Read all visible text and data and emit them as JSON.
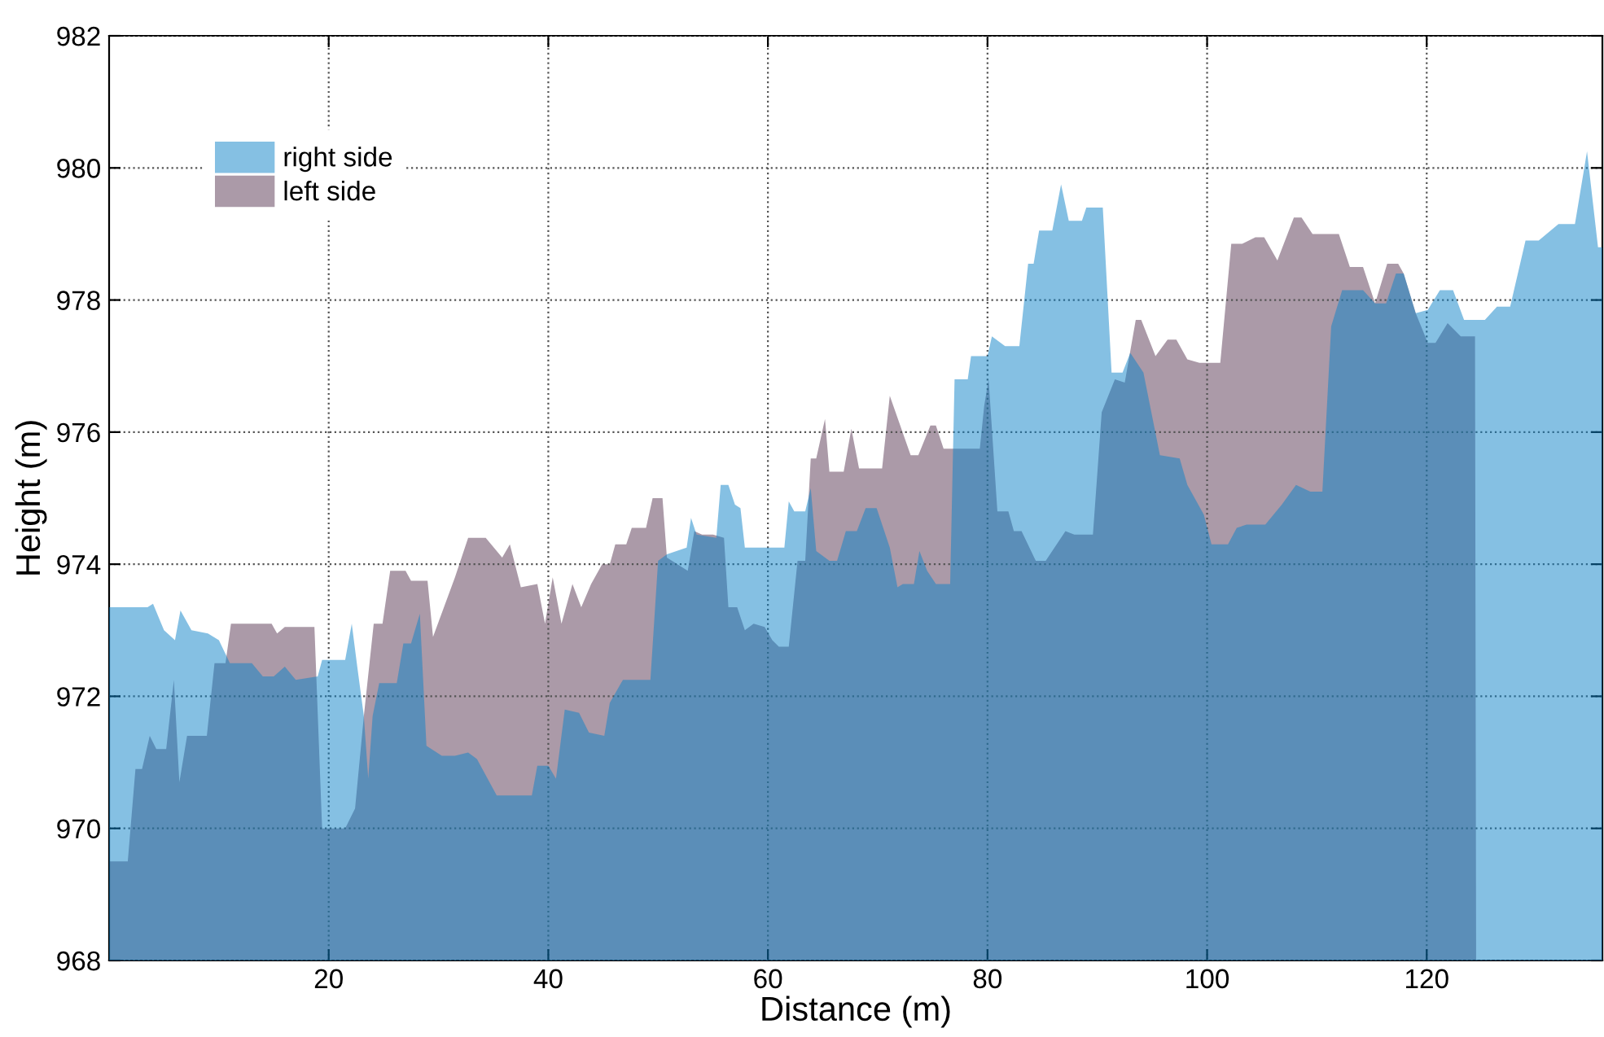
{
  "chart_data": {
    "type": "area",
    "xlabel": "Distance (m)",
    "ylabel": "Height (m)",
    "xlim": [
      0,
      136
    ],
    "ylim": [
      968,
      982
    ],
    "xticks": [
      20,
      40,
      60,
      80,
      100,
      120
    ],
    "yticks": [
      968,
      970,
      972,
      974,
      976,
      978,
      980,
      982
    ],
    "grid": true,
    "legend": "top left",
    "series": [
      {
        "name": "right side",
        "color": "#85c0e3",
        "x": [
          0,
          3.5,
          4,
          5,
          6,
          6.5,
          7.5,
          9,
          10,
          11,
          13,
          14,
          15,
          16,
          17,
          19,
          19.4,
          21.5,
          22.1,
          22.6,
          23.2,
          23.6,
          24,
          24.6,
          26.2,
          26.8,
          27.5,
          28.3,
          28.9,
          30.3,
          31.5,
          32.7,
          33.5,
          35.3,
          38.5,
          39,
          40,
          40.7,
          41.5,
          42.8,
          43.7,
          45.1,
          45.6,
          46.8,
          49.3,
          50,
          50.8,
          52.6,
          53,
          53.5,
          55.3,
          55.7,
          56.4,
          57,
          57.5,
          57.9,
          60,
          61.5,
          61.9,
          62.4,
          63.4,
          63.9,
          64.4,
          65.6,
          66.3,
          67.1,
          68.1,
          68.9,
          69.9,
          71.1,
          71.8,
          72.3,
          73.3,
          73.8,
          74.5,
          75.3,
          76.6,
          77,
          78.2,
          78.5,
          80,
          80.4,
          81.6,
          82.9,
          83.7,
          84.2,
          84.7,
          85.9,
          86.7,
          87.4,
          88.6,
          89,
          90.5,
          91.3,
          92.3,
          93,
          94.2,
          95.7,
          97.5,
          98.2,
          99.7,
          100.4,
          101.9,
          102.7,
          103.6,
          105.3,
          106.8,
          108.1,
          109.4,
          110.5,
          111.3,
          112.3,
          114.2,
          115.3,
          116.3,
          117.2,
          117.9,
          119,
          120.1,
          121.2,
          122.4,
          123.4,
          125.3,
          126.4,
          127.6,
          129,
          130.2,
          132,
          133.5,
          134.6,
          135.6,
          136
        ],
        "values": [
          973.35,
          973.35,
          973.4,
          973.0,
          972.85,
          973.3,
          973.0,
          972.95,
          972.85,
          972.5,
          972.5,
          972.3,
          972.3,
          972.45,
          972.25,
          972.3,
          972.55,
          972.55,
          973.1,
          972.45,
          971.7,
          970.75,
          971.7,
          972.2,
          972.2,
          972.8,
          972.8,
          973.25,
          971.25,
          971.1,
          971.1,
          971.15,
          971.05,
          970.5,
          970.5,
          970.95,
          970.95,
          970.75,
          971.8,
          971.75,
          971.45,
          971.4,
          971.9,
          972.25,
          972.25,
          974.05,
          974.15,
          974.25,
          974.7,
          974.45,
          974.4,
          975.2,
          975.2,
          974.9,
          974.85,
          974.25,
          974.25,
          974.25,
          974.95,
          974.8,
          974.8,
          975.15,
          974.2,
          974.05,
          974.05,
          974.5,
          974.5,
          974.85,
          974.85,
          974.25,
          973.65,
          973.7,
          973.7,
          974.2,
          973.9,
          973.7,
          973.7,
          976.8,
          976.8,
          977.15,
          977.15,
          977.45,
          977.3,
          977.3,
          978.55,
          978.55,
          979.05,
          979.05,
          979.75,
          979.2,
          979.2,
          979.4,
          979.4,
          976.9,
          976.9,
          977.2,
          976.9,
          975.65,
          975.6,
          975.2,
          974.75,
          974.3,
          974.3,
          974.55,
          974.6,
          974.6,
          974.9,
          975.2,
          975.1,
          975.1,
          977.6,
          978.15,
          978.15,
          977.95,
          977.95,
          978.4,
          978.4,
          977.8,
          977.85,
          978.15,
          978.15,
          977.7,
          977.7,
          977.9,
          977.9,
          978.9,
          978.9,
          979.15,
          979.15,
          980.25,
          978.8,
          978.8
        ]
      },
      {
        "name": "left side",
        "color": "#ab9aa8",
        "x": [
          0,
          1.7,
          2.4,
          3,
          3.7,
          4.3,
          5.2,
          5.9,
          6.4,
          7.1,
          8.9,
          9.6,
          10.6,
          11.1,
          12.6,
          14.8,
          15.3,
          16,
          18.7,
          19.4,
          21.5,
          22.4,
          23.2,
          24.1,
          24.9,
          25.6,
          27,
          27.5,
          29,
          29.5,
          31.5,
          32.7,
          34.3,
          35.8,
          36.5,
          37.5,
          39,
          39.7,
          40.4,
          41.2,
          42.2,
          43,
          43.9,
          44.9,
          45.6,
          46.1,
          47.1,
          47.6,
          48.9,
          49.5,
          50.4,
          50.8,
          52.7,
          53.3,
          54,
          55,
          56,
          56.4,
          57.2,
          57.9,
          58.7,
          59.7,
          60.4,
          61,
          61.9,
          62.7,
          63.4,
          63.9,
          64.4,
          65.2,
          65.6,
          66.9,
          67.6,
          68.3,
          70.4,
          71.1,
          73,
          73.7,
          74.8,
          75.3,
          76,
          79.3,
          79.7,
          80.1,
          80.9,
          81.9,
          82.4,
          83.1,
          84.4,
          85.3,
          87.1,
          87.9,
          89.6,
          90.4,
          91.6,
          92.5,
          93.5,
          94,
          95.3,
          96.4,
          97.2,
          98.2,
          99.3,
          101.2,
          102.2,
          103.2,
          104.4,
          105.2,
          106.4,
          107.9,
          108.6,
          109.6,
          112,
          113,
          114.2,
          115.3,
          116.4,
          117.4,
          117.9,
          119,
          120.1,
          120.8,
          121.9,
          123.1,
          124.4,
          124.5
        ],
        "values": [
          969.5,
          969.5,
          970.9,
          970.9,
          971.4,
          971.2,
          971.2,
          972.25,
          970.7,
          971.4,
          971.4,
          972.5,
          972.5,
          973.1,
          973.1,
          973.1,
          972.95,
          973.05,
          973.05,
          970.0,
          970.0,
          970.3,
          971.7,
          973.1,
          973.1,
          973.9,
          973.9,
          973.75,
          973.75,
          972.9,
          973.8,
          974.4,
          974.4,
          974.1,
          974.3,
          973.65,
          973.7,
          973.1,
          973.8,
          973.1,
          973.7,
          973.35,
          973.7,
          974.0,
          974.0,
          974.3,
          974.3,
          974.55,
          974.55,
          975.0,
          975.0,
          974.1,
          973.9,
          974.5,
          974.45,
          974.45,
          974.4,
          973.35,
          973.35,
          973.0,
          973.1,
          973.05,
          972.85,
          972.75,
          972.75,
          974.05,
          974.05,
          975.6,
          975.6,
          976.2,
          975.4,
          975.4,
          976.05,
          975.45,
          975.45,
          976.55,
          975.65,
          975.65,
          976.1,
          976.1,
          975.75,
          975.75,
          976.4,
          976.8,
          974.8,
          974.8,
          974.5,
          974.5,
          974.05,
          974.05,
          974.5,
          974.45,
          974.45,
          976.3,
          976.8,
          976.75,
          977.7,
          977.7,
          977.15,
          977.4,
          977.4,
          977.1,
          977.05,
          977.05,
          978.85,
          978.85,
          978.95,
          978.95,
          978.6,
          979.25,
          979.25,
          979.0,
          979.0,
          978.5,
          978.5,
          977.95,
          978.55,
          978.55,
          978.4,
          977.8,
          977.35,
          977.35,
          977.65,
          977.45,
          977.45,
          968
        ]
      }
    ]
  }
}
